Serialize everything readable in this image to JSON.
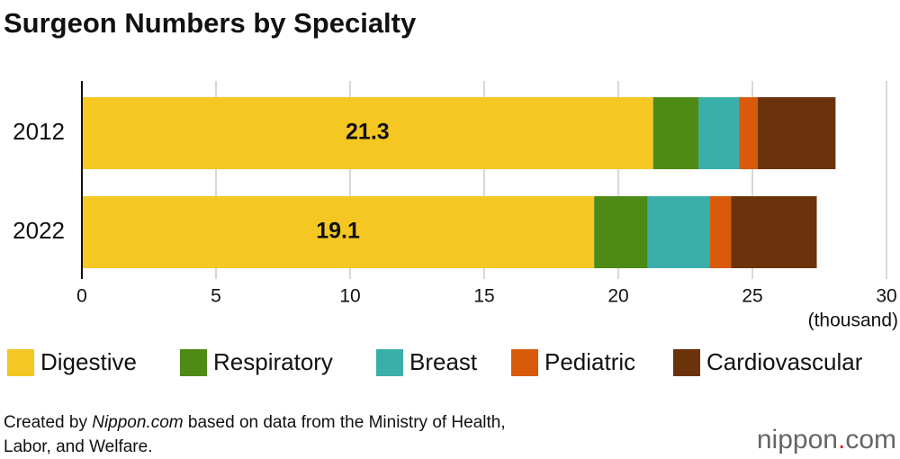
{
  "chart_data": {
    "type": "stacked_barh",
    "title": "Surgeon Numbers by Specialty",
    "categories": [
      "2012",
      "2022"
    ],
    "series": [
      {
        "name": "Digestive",
        "color": "#f5c723",
        "values": [
          21.3,
          19.1
        ]
      },
      {
        "name": "Respiratory",
        "color": "#4e8a16",
        "values": [
          1.7,
          2.0
        ]
      },
      {
        "name": "Breast",
        "color": "#3aafa9",
        "values": [
          1.5,
          2.3
        ]
      },
      {
        "name": "Pediatric",
        "color": "#d95a0b",
        "values": [
          0.7,
          0.8
        ]
      },
      {
        "name": "Cardiovascular",
        "color": "#6b330c",
        "values": [
          2.9,
          3.2
        ]
      }
    ],
    "xlim": [
      0,
      30
    ],
    "xticks": [
      0,
      5,
      10,
      15,
      20,
      25,
      30
    ],
    "x_unit": "(thousand)",
    "grid": true
  },
  "source": [
    "Created by ",
    "Nippon.com",
    " based on data from the Ministry of Health,",
    "Labor, and Welfare."
  ],
  "logo": {
    "name": "nippon",
    "dot": ".",
    "tld": "com"
  }
}
